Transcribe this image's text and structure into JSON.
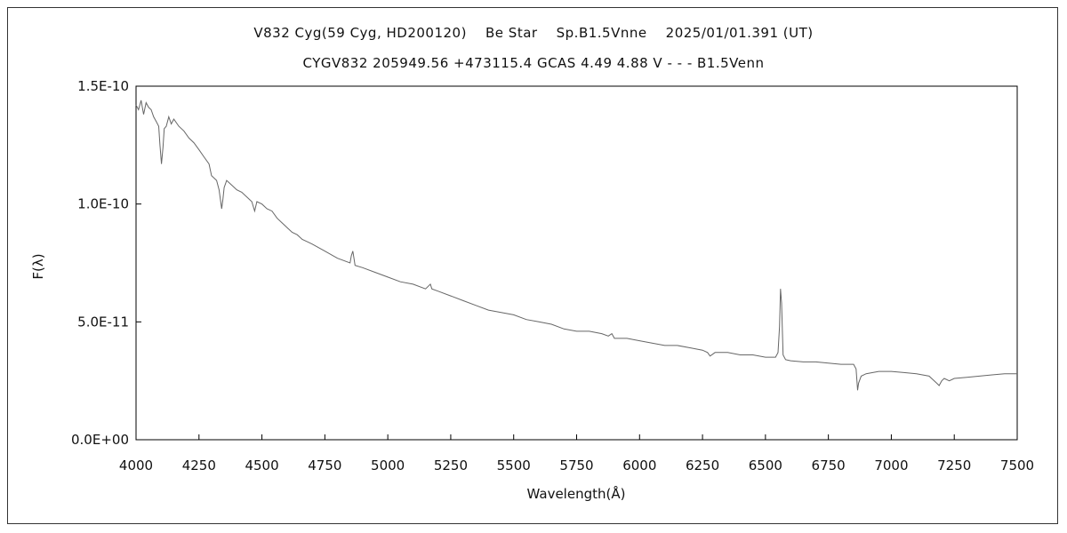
{
  "chart_data": {
    "type": "line",
    "title": "V832 Cyg(59 Cyg, HD200120)    Be Star    Sp.B1.5Vnne    2025/01/01.391 (UT)",
    "subtitle": "CYGV832 205949.56 +473115.4 GCAS 4.49 4.88 V - - - B1.5Venn",
    "xlabel": "Wavelength(Å)",
    "ylabel": "F(λ)",
    "xlim": [
      4000,
      7500
    ],
    "ylim": [
      0,
      1.5e-10
    ],
    "xticks": [
      4000,
      4250,
      4500,
      4750,
      5000,
      5250,
      5500,
      5750,
      6000,
      6250,
      6500,
      6750,
      7000,
      7250,
      7500
    ],
    "xtick_labels": [
      "4000",
      "4250",
      "4500",
      "4750",
      "5000",
      "5250",
      "5500",
      "5750",
      "6000",
      "6250",
      "6500",
      "6750",
      "7000",
      "7250",
      "7500"
    ],
    "yticks": [
      0,
      5e-11,
      1e-10,
      1.5e-10
    ],
    "ytick_labels": [
      "0.0E+00",
      "5.0E-11",
      "1.0E-10",
      "1.5E-10"
    ],
    "grid": false,
    "line_color": "#666666",
    "series": [
      {
        "x": [
          4000,
          4010,
          4020,
          4030,
          4040,
          4050,
          4060,
          4070,
          4080,
          4090,
          4095,
          4101,
          4107,
          4112,
          4120,
          4130,
          4140,
          4150,
          4170,
          4190,
          4210,
          4230,
          4250,
          4270,
          4290,
          4300,
          4320,
          4330,
          4340,
          4345,
          4350,
          4360,
          4380,
          4400,
          4420,
          4440,
          4460,
          4471,
          4480,
          4500,
          4520,
          4540,
          4560,
          4580,
          4600,
          4620,
          4640,
          4660,
          4680,
          4700,
          4750,
          4800,
          4850,
          4855,
          4861,
          4867,
          4870,
          4900,
          4950,
          5000,
          5050,
          5100,
          5150,
          5169,
          5175,
          5200,
          5250,
          5300,
          5350,
          5400,
          5450,
          5500,
          5550,
          5600,
          5650,
          5700,
          5750,
          5800,
          5850,
          5876,
          5890,
          5900,
          5950,
          6000,
          6050,
          6100,
          6150,
          6200,
          6250,
          6270,
          6280,
          6300,
          6350,
          6400,
          6450,
          6500,
          6540,
          6550,
          6556,
          6560,
          6564,
          6570,
          6580,
          6600,
          6650,
          6700,
          6750,
          6800,
          6850,
          6860,
          6866,
          6870,
          6880,
          6900,
          6950,
          7000,
          7050,
          7100,
          7150,
          7180,
          7190,
          7200,
          7210,
          7230,
          7250,
          7300,
          7350,
          7400,
          7450,
          7500
        ],
        "y": [
          1.42e-10,
          1.4e-10,
          1.44e-10,
          1.38e-10,
          1.43e-10,
          1.41e-10,
          1.4e-10,
          1.37e-10,
          1.35e-10,
          1.33e-10,
          1.25e-10,
          1.17e-10,
          1.24e-10,
          1.32e-10,
          1.33e-10,
          1.37e-10,
          1.34e-10,
          1.36e-10,
          1.33e-10,
          1.31e-10,
          1.28e-10,
          1.26e-10,
          1.23e-10,
          1.2e-10,
          1.17e-10,
          1.12e-10,
          1.1e-10,
          1.06e-10,
          9.8e-11,
          1.02e-10,
          1.07e-10,
          1.1e-10,
          1.08e-10,
          1.06e-10,
          1.05e-10,
          1.03e-10,
          1.01e-10,
          9.7e-11,
          1.01e-10,
          1e-10,
          9.8e-11,
          9.7e-11,
          9.4e-11,
          9.2e-11,
          9e-11,
          8.8e-11,
          8.7e-11,
          8.5e-11,
          8.4e-11,
          8.3e-11,
          8e-11,
          7.7e-11,
          7.5e-11,
          7.8e-11,
          8e-11,
          7.6e-11,
          7.4e-11,
          7.3e-11,
          7.1e-11,
          6.9e-11,
          6.7e-11,
          6.6e-11,
          6.4e-11,
          6.6e-11,
          6.4e-11,
          6.3e-11,
          6.1e-11,
          5.9e-11,
          5.7e-11,
          5.5e-11,
          5.4e-11,
          5.3e-11,
          5.1e-11,
          5e-11,
          4.9e-11,
          4.7e-11,
          4.6e-11,
          4.6e-11,
          4.5e-11,
          4.4e-11,
          4.5e-11,
          4.3e-11,
          4.3e-11,
          4.2e-11,
          4.1e-11,
          4e-11,
          4e-11,
          3.9e-11,
          3.8e-11,
          3.7e-11,
          3.55e-11,
          3.7e-11,
          3.7e-11,
          3.6e-11,
          3.6e-11,
          3.5e-11,
          3.5e-11,
          3.7e-11,
          4.8e-11,
          6.4e-11,
          5.8e-11,
          3.6e-11,
          3.4e-11,
          3.35e-11,
          3.3e-11,
          3.3e-11,
          3.25e-11,
          3.2e-11,
          3.2e-11,
          3e-11,
          2.1e-11,
          2.4e-11,
          2.7e-11,
          2.8e-11,
          2.9e-11,
          2.9e-11,
          2.85e-11,
          2.8e-11,
          2.7e-11,
          2.4e-11,
          2.3e-11,
          2.5e-11,
          2.6e-11,
          2.5e-11,
          2.6e-11,
          2.65e-11,
          2.7e-11,
          2.75e-11,
          2.8e-11,
          2.8e-11
        ]
      }
    ]
  }
}
